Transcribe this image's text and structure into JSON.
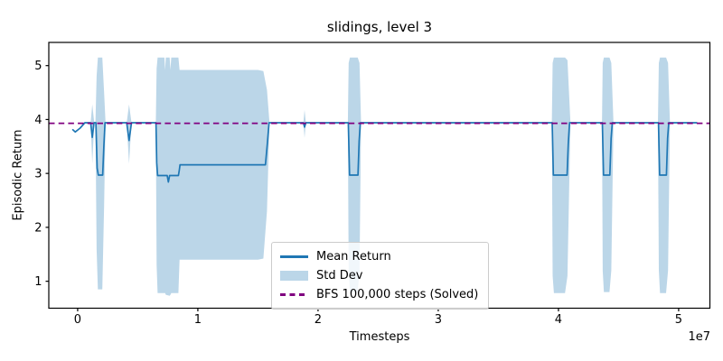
{
  "figure": {
    "background": "#ffffff"
  },
  "chart_data": {
    "type": "line",
    "title": "slidings, level 3",
    "xlabel": "Timesteps",
    "ylabel": "Episodic Return",
    "x_offset_label": "1e7",
    "x_units": "timesteps x 1e7",
    "xlim": [
      -0.24,
      5.26
    ],
    "ylim": [
      0.5,
      5.43
    ],
    "xticks": [
      0,
      1,
      2,
      3,
      4,
      5
    ],
    "yticks": [
      1,
      2,
      3,
      4,
      5
    ],
    "grid": false,
    "legend_position": "lower center",
    "baseline": {
      "label": "BFS 100,000 steps (Solved)",
      "value": 3.93,
      "color": "#800080",
      "style": "dashed"
    },
    "mean_series": {
      "name": "Mean Return",
      "color": "#1f77b4",
      "points": [
        [
          -0.04,
          3.81
        ],
        [
          -0.02,
          3.77
        ],
        [
          0.02,
          3.84
        ],
        [
          0.06,
          3.94
        ],
        [
          0.108,
          3.94
        ],
        [
          0.122,
          3.67
        ],
        [
          0.136,
          3.94
        ],
        [
          0.152,
          3.94
        ],
        [
          0.162,
          3.1
        ],
        [
          0.172,
          2.97
        ],
        [
          0.208,
          2.97
        ],
        [
          0.218,
          3.5
        ],
        [
          0.228,
          3.94
        ],
        [
          0.408,
          3.94
        ],
        [
          0.428,
          3.61
        ],
        [
          0.448,
          3.94
        ],
        [
          0.652,
          3.94
        ],
        [
          0.658,
          3.2
        ],
        [
          0.665,
          2.96
        ],
        [
          0.745,
          2.96
        ],
        [
          0.755,
          2.84
        ],
        [
          0.765,
          2.96
        ],
        [
          0.838,
          2.96
        ],
        [
          0.845,
          3.05
        ],
        [
          0.852,
          3.16
        ],
        [
          1.562,
          3.16
        ],
        [
          1.578,
          3.55
        ],
        [
          1.592,
          3.94
        ],
        [
          1.878,
          3.94
        ],
        [
          1.888,
          3.86
        ],
        [
          1.898,
          3.94
        ],
        [
          2.252,
          3.94
        ],
        [
          2.262,
          2.97
        ],
        [
          2.332,
          2.97
        ],
        [
          2.342,
          3.6
        ],
        [
          2.352,
          3.94
        ],
        [
          3.948,
          3.94
        ],
        [
          3.958,
          2.97
        ],
        [
          4.072,
          2.97
        ],
        [
          4.082,
          3.55
        ],
        [
          4.092,
          3.94
        ],
        [
          4.365,
          3.94
        ],
        [
          4.375,
          2.97
        ],
        [
          4.428,
          2.97
        ],
        [
          4.438,
          3.65
        ],
        [
          4.448,
          3.94
        ],
        [
          4.832,
          3.94
        ],
        [
          4.842,
          2.97
        ],
        [
          4.898,
          2.97
        ],
        [
          4.908,
          3.65
        ],
        [
          4.918,
          3.94
        ],
        [
          5.15,
          3.94
        ]
      ]
    },
    "band_series": {
      "name": "Std Dev",
      "color": "rgba(31,119,180,0.3)",
      "shapes": [
        {
          "x": [
            0.108,
            0.122,
            0.138
          ],
          "top": [
            3.94,
            4.28,
            3.94
          ],
          "bottom": [
            3.94,
            3.18,
            3.94
          ]
        },
        {
          "x": [
            0.148,
            0.158,
            0.168,
            0.205,
            0.22,
            0.232
          ],
          "top": [
            3.94,
            4.8,
            5.15,
            5.15,
            4.5,
            3.94
          ],
          "bottom": [
            3.94,
            1.6,
            0.85,
            0.85,
            2.4,
            3.94
          ]
        },
        {
          "x": [
            0.408,
            0.428,
            0.448
          ],
          "top": [
            3.94,
            4.28,
            3.94
          ],
          "bottom": [
            3.94,
            3.18,
            3.94
          ]
        },
        {
          "x": [
            0.65,
            0.657,
            0.665,
            0.722,
            0.728,
            0.734,
            0.765,
            0.772,
            0.779,
            0.838,
            0.848,
            1.5,
            1.545,
            1.575,
            1.596
          ],
          "top": [
            3.94,
            4.95,
            5.15,
            5.15,
            4.92,
            5.15,
            5.15,
            4.92,
            5.15,
            5.15,
            4.92,
            4.92,
            4.9,
            4.55,
            3.94
          ],
          "bottom": [
            3.94,
            1.3,
            0.78,
            0.78,
            0.78,
            0.75,
            0.73,
            0.75,
            0.78,
            0.78,
            1.4,
            1.4,
            1.42,
            2.3,
            3.94
          ]
        },
        {
          "x": [
            1.878,
            1.888,
            1.898
          ],
          "top": [
            3.94,
            4.18,
            3.94
          ],
          "bottom": [
            3.94,
            3.66,
            3.94
          ]
        },
        {
          "x": [
            2.248,
            2.255,
            2.265,
            2.33,
            2.345,
            2.358
          ],
          "top": [
            3.94,
            5.05,
            5.15,
            5.15,
            5.05,
            3.94
          ],
          "bottom": [
            3.94,
            1.2,
            0.8,
            0.8,
            1.2,
            3.94
          ]
        },
        {
          "x": [
            3.945,
            3.952,
            3.962,
            4.055,
            4.075,
            4.1
          ],
          "top": [
            3.94,
            5.05,
            5.15,
            5.15,
            5.1,
            3.94
          ],
          "bottom": [
            3.94,
            1.1,
            0.78,
            0.78,
            1.1,
            3.94
          ]
        },
        {
          "x": [
            4.362,
            4.368,
            4.378,
            4.425,
            4.44,
            4.458
          ],
          "top": [
            3.94,
            5.05,
            5.15,
            5.15,
            5.05,
            3.94
          ],
          "bottom": [
            3.94,
            1.2,
            0.8,
            0.8,
            1.2,
            3.94
          ]
        },
        {
          "x": [
            4.828,
            4.835,
            4.845,
            4.895,
            4.912,
            4.928
          ],
          "top": [
            3.94,
            5.05,
            5.15,
            5.15,
            5.05,
            3.94
          ],
          "bottom": [
            3.94,
            1.2,
            0.78,
            0.78,
            1.2,
            3.94
          ]
        }
      ]
    },
    "legend": {
      "entries": [
        {
          "label": "Mean Return",
          "swatch": "line",
          "color": "#1f77b4"
        },
        {
          "label": "Std Dev",
          "swatch": "patch",
          "color": "rgba(31,119,180,0.3)"
        },
        {
          "label": "BFS 100,000 steps (Solved)",
          "swatch": "dashed",
          "color": "#800080"
        }
      ]
    }
  }
}
